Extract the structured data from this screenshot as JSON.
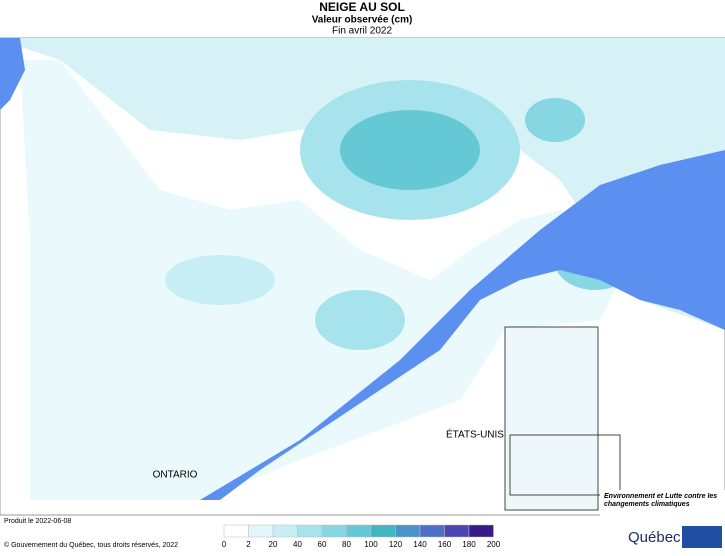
{
  "header": {
    "title": "NEIGE AU SOL",
    "subtitle": "Valeur observée (cm)",
    "period": "Fin avril 2022"
  },
  "map": {
    "labels": {
      "ontario": "ONTARIO",
      "usa": "ÉTATS-UNIS"
    }
  },
  "legend": {
    "ticks": [
      0,
      2,
      20,
      40,
      60,
      80,
      100,
      120,
      140,
      160,
      180,
      200
    ],
    "colors": [
      "#ffffff",
      "#e3f7fa",
      "#c6eef4",
      "#a6e3ec",
      "#86d7e2",
      "#64c9d4",
      "#43b5bf",
      "#4a93c6",
      "#4d6fc6",
      "#4a45b2",
      "#3a1a86"
    ]
  },
  "footer": {
    "produced": "Produit le 2022-06-08",
    "copyright": "© Gouvernement du Québec, tous droits réservés, 2022"
  },
  "logo": {
    "ministry": "Environnement et Lutte contre les changements climatiques",
    "name": "Québec"
  }
}
